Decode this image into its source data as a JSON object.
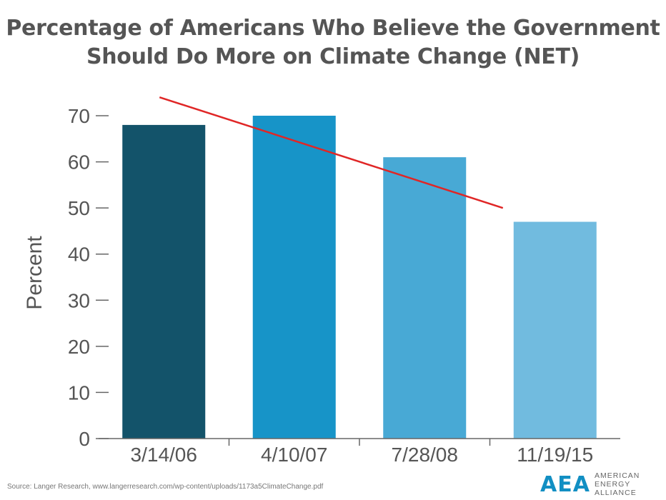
{
  "chart_data": {
    "type": "bar",
    "title_line1": "Percentage of Americans Who Believe the Government",
    "title_line2": "Should Do More on Climate Change (NET)",
    "xlabel": "",
    "ylabel": "Percent",
    "categories": [
      "3/14/06",
      "4/10/07",
      "7/28/08",
      "11/19/15"
    ],
    "values": [
      68,
      70,
      61,
      47
    ],
    "bar_colors": [
      "#13536a",
      "#1794c8",
      "#48a9d5",
      "#71bbdf"
    ],
    "ylim": [
      0,
      70
    ],
    "yticks": [
      0,
      10,
      20,
      30,
      40,
      50,
      60,
      70
    ],
    "grid": false,
    "legend": "none",
    "trend_line": {
      "color": "#e02626",
      "start": {
        "category": "3/14/06",
        "value": 74
      },
      "end": {
        "category": "11/19/15",
        "value": 50
      }
    }
  },
  "footer": {
    "source": "Source: Langer Research, www.langerresearch.com/wp-content/uploads/1173a5ClimateChange.pdf",
    "logo_mark": "AEA",
    "logo_line1": "AMERICAN",
    "logo_line2": "ENERGY ALLIANCE"
  }
}
